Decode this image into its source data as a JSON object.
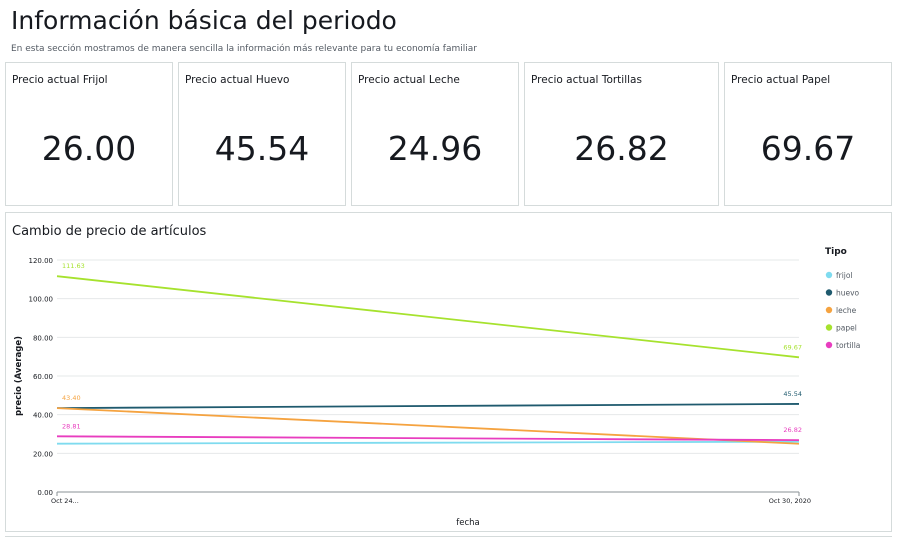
{
  "header": {
    "title": "Información básica del periodo",
    "subtitle": "En esta sección mostramos de manera sencilla la información más relevante para tu economía familiar"
  },
  "kpis": [
    {
      "label": "Precio actual Frijol",
      "value": "26.00"
    },
    {
      "label": "Precio actual Huevo",
      "value": "45.54"
    },
    {
      "label": "Precio actual Leche",
      "value": "24.96"
    },
    {
      "label": "Precio actual Tortillas",
      "value": "26.82"
    },
    {
      "label": "Precio actual Papel",
      "value": "69.67"
    }
  ],
  "chart_data": {
    "type": "line",
    "title": "Cambio de precio de artículos",
    "xlabel": "fecha",
    "ylabel": "precio (Average)",
    "x": [
      "Oct 24...",
      "Oct 30, 2020"
    ],
    "ylim": [
      0,
      120
    ],
    "yticks": [
      "0.00",
      "20.00",
      "40.00",
      "60.00",
      "80.00",
      "100.00",
      "120.00"
    ],
    "grid": true,
    "legend_title": "Tipo",
    "legend_position": "right",
    "series": [
      {
        "name": "frijol",
        "color": "#7fdbef",
        "values": [
          25.0,
          26.0
        ],
        "labels": [
          "",
          ""
        ]
      },
      {
        "name": "huevo",
        "color": "#1f5a6e",
        "values": [
          43.4,
          45.54
        ],
        "labels": [
          "",
          "45.54"
        ]
      },
      {
        "name": "leche",
        "color": "#f5a340",
        "values": [
          43.4,
          24.96
        ],
        "labels": [
          "43.40",
          ""
        ]
      },
      {
        "name": "papel",
        "color": "#a6e22e",
        "values": [
          111.63,
          69.67
        ],
        "labels": [
          "111.63",
          "69.67"
        ]
      },
      {
        "name": "tortilla",
        "color": "#e83dbf",
        "values": [
          28.81,
          26.82
        ],
        "labels": [
          "28.81",
          "26.82"
        ]
      }
    ]
  }
}
